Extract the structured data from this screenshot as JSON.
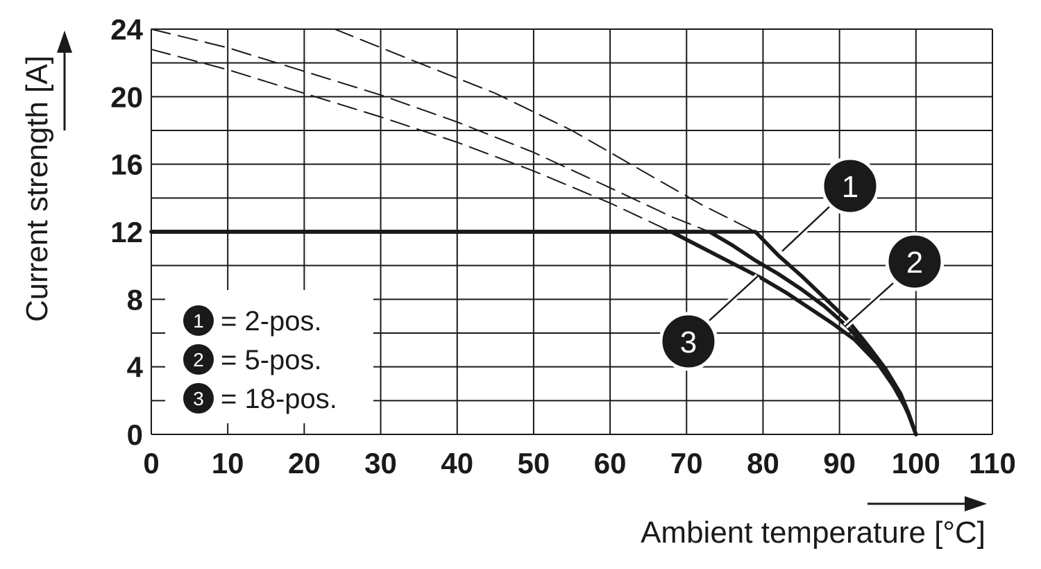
{
  "chart_data": {
    "type": "line",
    "xlabel": "Ambient temperature [°C]",
    "ylabel": "Current strength [A]",
    "xlim": [
      0,
      110
    ],
    "ylim": [
      0,
      24
    ],
    "xticks": [
      "0",
      "10",
      "20",
      "30",
      "40",
      "50",
      "60",
      "70",
      "80",
      "90",
      "100",
      "110"
    ],
    "yticks": [
      "0",
      "4",
      "8",
      "12",
      "16",
      "20",
      "24"
    ],
    "grid": true,
    "legend_placement": "lower-left",
    "legend": [
      {
        "marker": "1",
        "label": "= 2-pos."
      },
      {
        "marker": "2",
        "label": "= 5-pos."
      },
      {
        "marker": "3",
        "label": "= 18-pos."
      }
    ],
    "series": [
      {
        "marker": "1",
        "style": "solid",
        "x": [
          0,
          79,
          82,
          85,
          88,
          91,
          94,
          96,
          98,
          99,
          100
        ],
        "y": [
          12,
          12,
          10.6,
          9.4,
          8.1,
          6.8,
          5.1,
          3.9,
          2.4,
          1.3,
          0
        ]
      },
      {
        "marker": "2",
        "style": "solid",
        "x": [
          0,
          73,
          76,
          79,
          82,
          85,
          88,
          91,
          94,
          96,
          98,
          99,
          100
        ],
        "y": [
          12,
          12,
          11.2,
          10.3,
          9.5,
          8.6,
          7.6,
          6.4,
          4.9,
          3.6,
          2.2,
          1.2,
          0
        ]
      },
      {
        "marker": "3",
        "style": "solid",
        "x": [
          0,
          68,
          71,
          74,
          77,
          80,
          83,
          86,
          89,
          92,
          95,
          97,
          99,
          100
        ],
        "y": [
          12,
          12,
          11.3,
          10.6,
          9.9,
          9.2,
          8.4,
          7.5,
          6.6,
          5.6,
          4.2,
          2.9,
          1.3,
          0
        ]
      },
      {
        "marker": "1",
        "style": "dashed",
        "x": [
          24,
          35,
          45,
          55,
          65,
          72,
          79
        ],
        "y": [
          24,
          22,
          20.2,
          18,
          15.4,
          13.6,
          12
        ]
      },
      {
        "marker": "2",
        "style": "dashed",
        "x": [
          0,
          10,
          20,
          30,
          40,
          50,
          60,
          68,
          73
        ],
        "y": [
          24,
          22.9,
          21.5,
          20.1,
          18.5,
          16.7,
          14.6,
          12.9,
          12
        ]
      },
      {
        "marker": "3",
        "style": "dashed",
        "x": [
          0,
          10,
          20,
          30,
          40,
          50,
          60,
          68
        ],
        "y": [
          22.8,
          21.6,
          20.2,
          18.8,
          17.3,
          15.6,
          13.7,
          12
        ]
      }
    ],
    "callouts": [
      "1",
      "2",
      "3"
    ]
  }
}
